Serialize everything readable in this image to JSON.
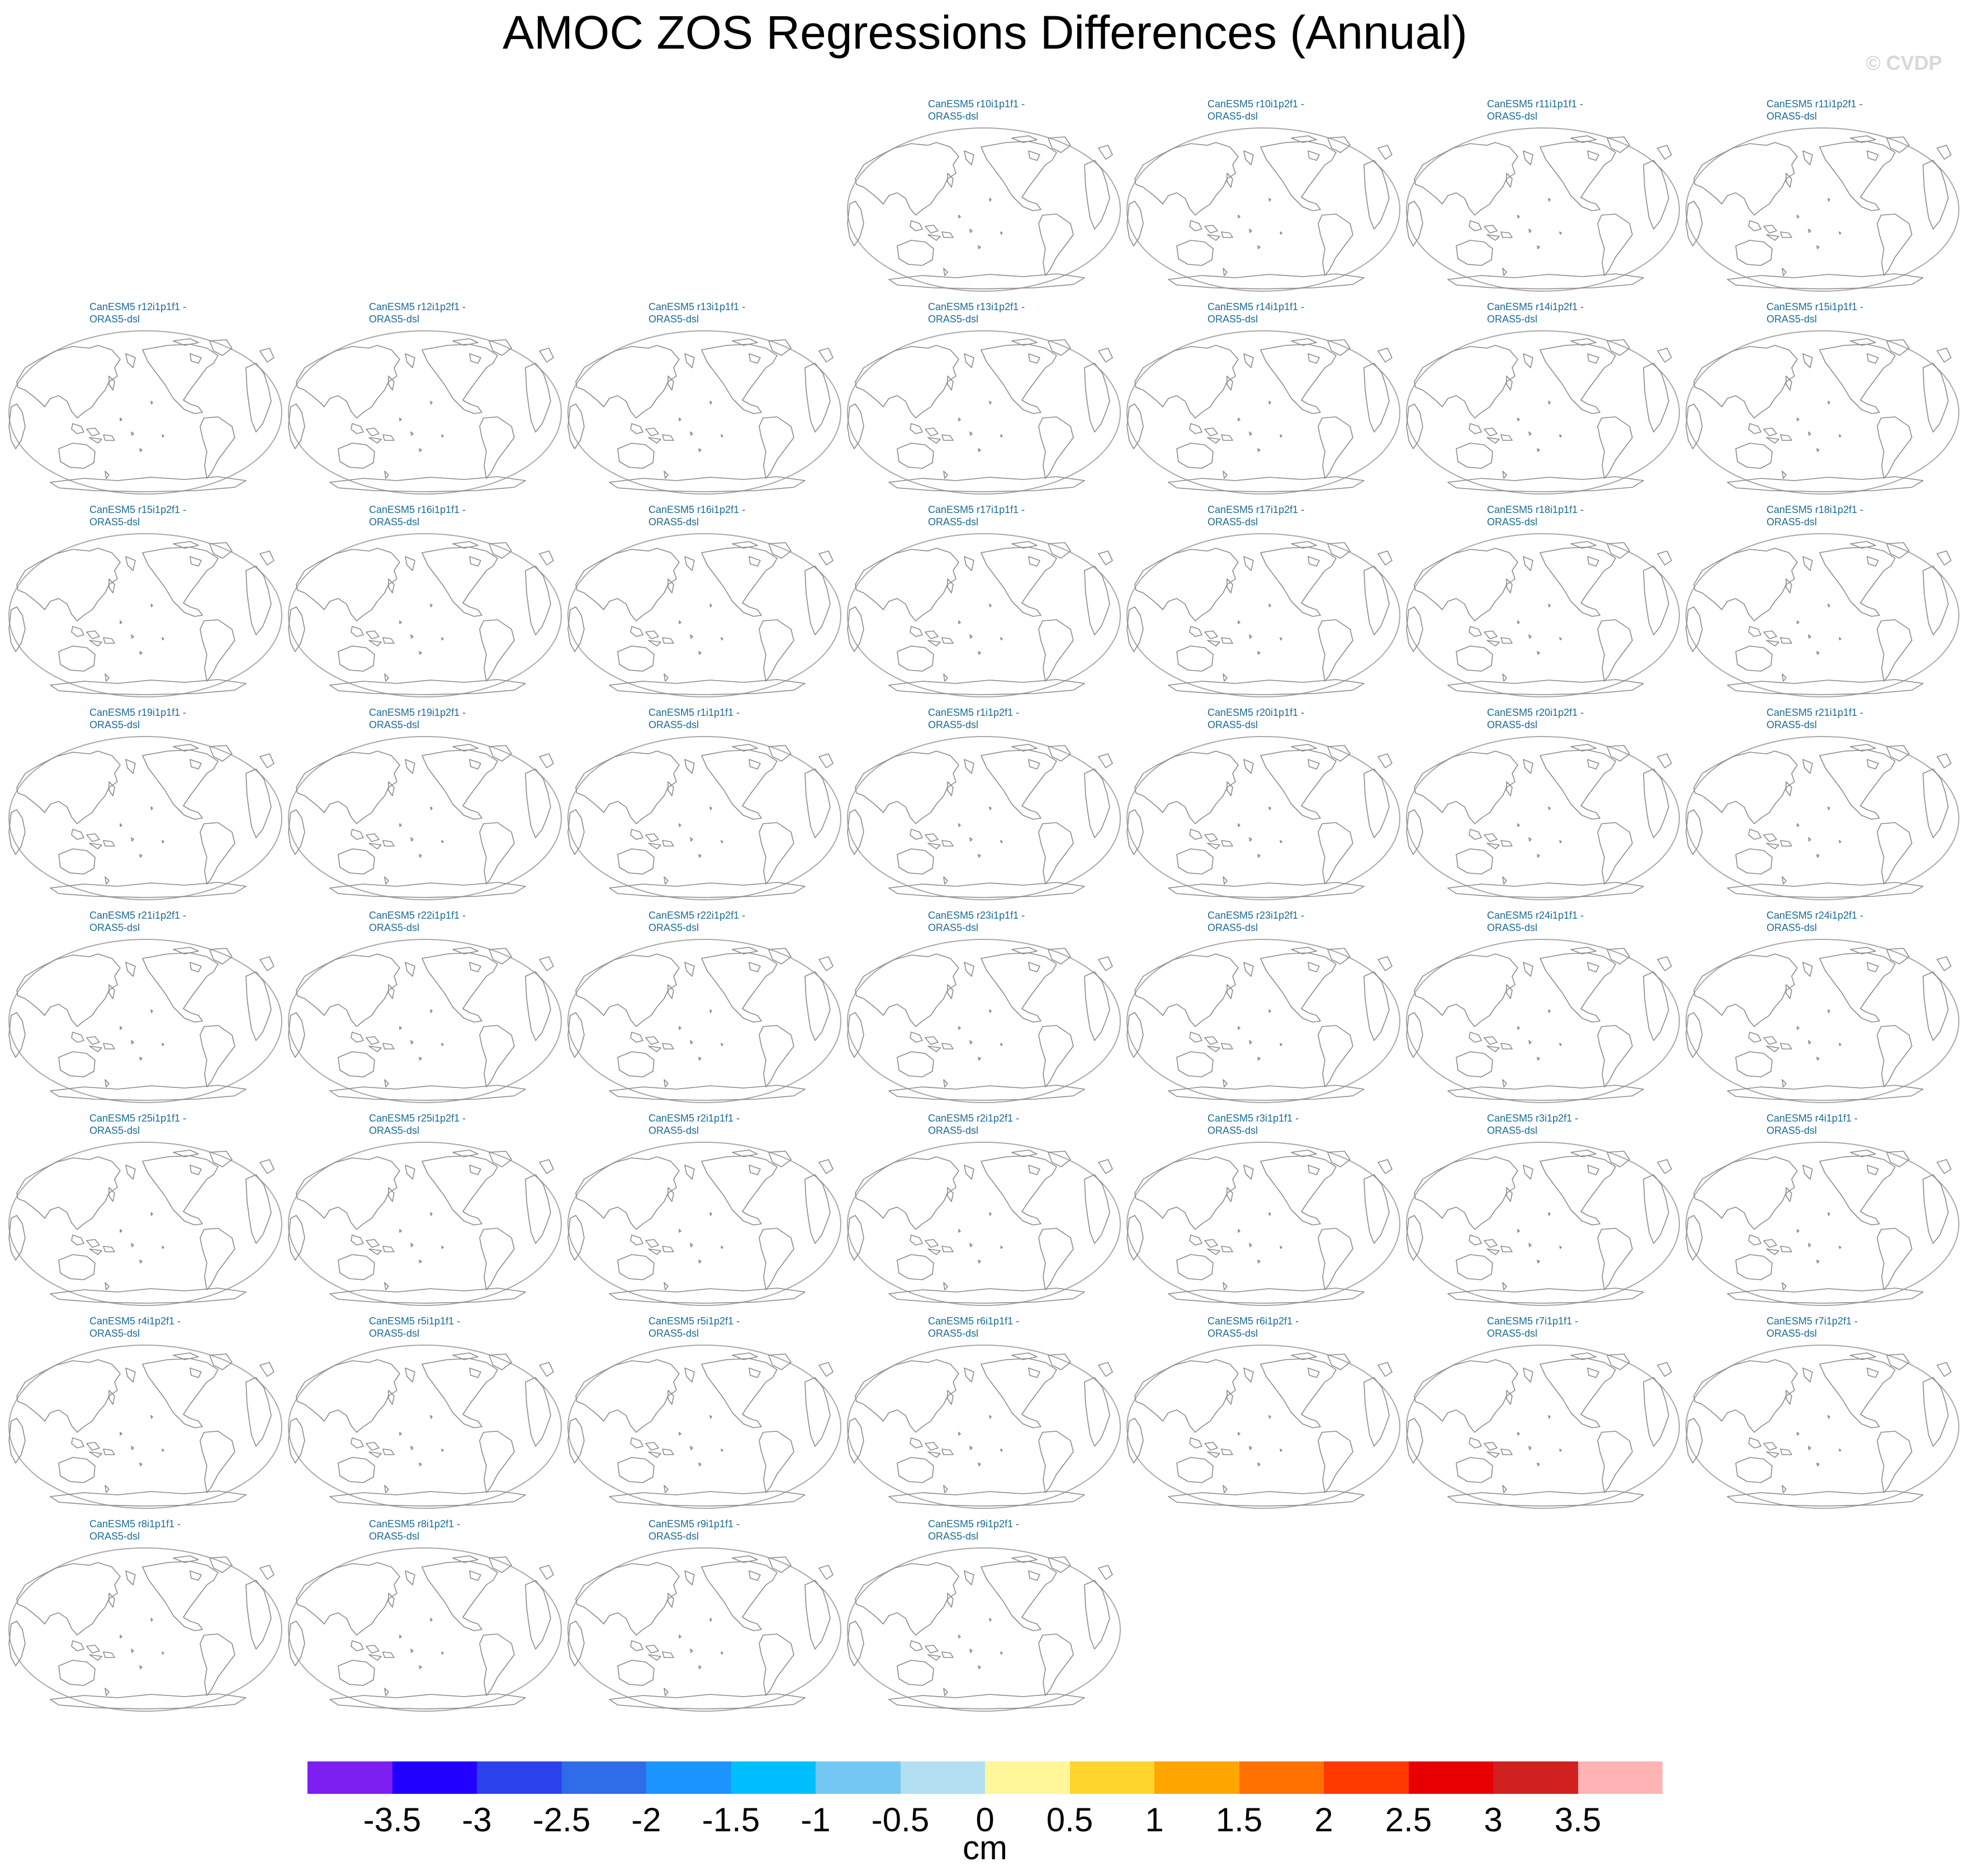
{
  "title": "AMOC ZOS Regressions Differences (Annual)",
  "watermark": "© CVDP",
  "panels": [
    {
      "row": 0,
      "col": 3,
      "label": "CanESM5 r10i1p1f1 -\nORAS5-dsl"
    },
    {
      "row": 0,
      "col": 4,
      "label": "CanESM5 r10i1p2f1 -\nORAS5-dsl"
    },
    {
      "row": 0,
      "col": 5,
      "label": "CanESM5 r11i1p1f1 -\nORAS5-dsl"
    },
    {
      "row": 0,
      "col": 6,
      "label": "CanESM5 r11i1p2f1 -\nORAS5-dsl"
    },
    {
      "row": 1,
      "col": 0,
      "label": "CanESM5 r12i1p1f1 -\nORAS5-dsl"
    },
    {
      "row": 1,
      "col": 1,
      "label": "CanESM5 r12i1p2f1 -\nORAS5-dsl"
    },
    {
      "row": 1,
      "col": 2,
      "label": "CanESM5 r13i1p1f1 -\nORAS5-dsl"
    },
    {
      "row": 1,
      "col": 3,
      "label": "CanESM5 r13i1p2f1 -\nORAS5-dsl"
    },
    {
      "row": 1,
      "col": 4,
      "label": "CanESM5 r14i1p1f1 -\nORAS5-dsl"
    },
    {
      "row": 1,
      "col": 5,
      "label": "CanESM5 r14i1p2f1 -\nORAS5-dsl"
    },
    {
      "row": 1,
      "col": 6,
      "label": "CanESM5 r15i1p1f1 -\nORAS5-dsl"
    },
    {
      "row": 2,
      "col": 0,
      "label": "CanESM5 r15i1p2f1 -\nORAS5-dsl"
    },
    {
      "row": 2,
      "col": 1,
      "label": "CanESM5 r16i1p1f1 -\nORAS5-dsl"
    },
    {
      "row": 2,
      "col": 2,
      "label": "CanESM5 r16i1p2f1 -\nORAS5-dsl"
    },
    {
      "row": 2,
      "col": 3,
      "label": "CanESM5 r17i1p1f1 -\nORAS5-dsl"
    },
    {
      "row": 2,
      "col": 4,
      "label": "CanESM5 r17i1p2f1 -\nORAS5-dsl"
    },
    {
      "row": 2,
      "col": 5,
      "label": "CanESM5 r18i1p1f1 -\nORAS5-dsl"
    },
    {
      "row": 2,
      "col": 6,
      "label": "CanESM5 r18i1p2f1 -\nORAS5-dsl"
    },
    {
      "row": 3,
      "col": 0,
      "label": "CanESM5 r19i1p1f1 -\nORAS5-dsl"
    },
    {
      "row": 3,
      "col": 1,
      "label": "CanESM5 r19i1p2f1 -\nORAS5-dsl"
    },
    {
      "row": 3,
      "col": 2,
      "label": "CanESM5 r1i1p1f1 -\nORAS5-dsl"
    },
    {
      "row": 3,
      "col": 3,
      "label": "CanESM5 r1i1p2f1 -\nORAS5-dsl"
    },
    {
      "row": 3,
      "col": 4,
      "label": "CanESM5 r20i1p1f1 -\nORAS5-dsl"
    },
    {
      "row": 3,
      "col": 5,
      "label": "CanESM5 r20i1p2f1 -\nORAS5-dsl"
    },
    {
      "row": 3,
      "col": 6,
      "label": "CanESM5 r21i1p1f1 -\nORAS5-dsl"
    },
    {
      "row": 4,
      "col": 0,
      "label": "CanESM5 r21i1p2f1 -\nORAS5-dsl"
    },
    {
      "row": 4,
      "col": 1,
      "label": "CanESM5 r22i1p1f1 -\nORAS5-dsl"
    },
    {
      "row": 4,
      "col": 2,
      "label": "CanESM5 r22i1p2f1 -\nORAS5-dsl"
    },
    {
      "row": 4,
      "col": 3,
      "label": "CanESM5 r23i1p1f1 -\nORAS5-dsl"
    },
    {
      "row": 4,
      "col": 4,
      "label": "CanESM5 r23i1p2f1 -\nORAS5-dsl"
    },
    {
      "row": 4,
      "col": 5,
      "label": "CanESM5 r24i1p1f1 -\nORAS5-dsl"
    },
    {
      "row": 4,
      "col": 6,
      "label": "CanESM5 r24i1p2f1 -\nORAS5-dsl"
    },
    {
      "row": 5,
      "col": 0,
      "label": "CanESM5 r25i1p1f1 -\nORAS5-dsl"
    },
    {
      "row": 5,
      "col": 1,
      "label": "CanESM5 r25i1p2f1 -\nORAS5-dsl"
    },
    {
      "row": 5,
      "col": 2,
      "label": "CanESM5 r2i1p1f1 -\nORAS5-dsl"
    },
    {
      "row": 5,
      "col": 3,
      "label": "CanESM5 r2i1p2f1 -\nORAS5-dsl"
    },
    {
      "row": 5,
      "col": 4,
      "label": "CanESM5 r3i1p1f1 -\nORAS5-dsl"
    },
    {
      "row": 5,
      "col": 5,
      "label": "CanESM5 r3i1p2f1 -\nORAS5-dsl"
    },
    {
      "row": 5,
      "col": 6,
      "label": "CanESM5 r4i1p1f1 -\nORAS5-dsl"
    },
    {
      "row": 6,
      "col": 0,
      "label": "CanESM5 r4i1p2f1 -\nORAS5-dsl"
    },
    {
      "row": 6,
      "col": 1,
      "label": "CanESM5 r5i1p1f1 -\nORAS5-dsl"
    },
    {
      "row": 6,
      "col": 2,
      "label": "CanESM5 r5i1p2f1 -\nORAS5-dsl"
    },
    {
      "row": 6,
      "col": 3,
      "label": "CanESM5 r6i1p1f1 -\nORAS5-dsl"
    },
    {
      "row": 6,
      "col": 4,
      "label": "CanESM5 r6i1p2f1 -\nORAS5-dsl"
    },
    {
      "row": 6,
      "col": 5,
      "label": "CanESM5 r7i1p1f1 -\nORAS5-dsl"
    },
    {
      "row": 6,
      "col": 6,
      "label": "CanESM5 r7i1p2f1 -\nORAS5-dsl"
    },
    {
      "row": 7,
      "col": 0,
      "label": "CanESM5 r8i1p1f1 -\nORAS5-dsl"
    },
    {
      "row": 7,
      "col": 1,
      "label": "CanESM5 r8i1p2f1 -\nORAS5-dsl"
    },
    {
      "row": 7,
      "col": 2,
      "label": "CanESM5 r9i1p1f1 -\nORAS5-dsl"
    },
    {
      "row": 7,
      "col": 3,
      "label": "CanESM5 r9i1p2f1 -\nORAS5-dsl"
    }
  ],
  "colorbar": {
    "colors": [
      "#7d1ff0",
      "#2100ff",
      "#2b42ee",
      "#2f6ce8",
      "#1c94ff",
      "#00bfff",
      "#74c7f2",
      "#b2dff2",
      "#fff799",
      "#ffd42d",
      "#ffa600",
      "#ff7100",
      "#ff3a00",
      "#e80000",
      "#d02020",
      "#ffb3b3"
    ],
    "ticks": [
      "-3.5",
      "-3",
      "-2.5",
      "-2",
      "-1.5",
      "-1",
      "-0.5",
      "0",
      "0.5",
      "1",
      "1.5",
      "2",
      "2.5",
      "3",
      "3.5"
    ],
    "units": "cm"
  }
}
